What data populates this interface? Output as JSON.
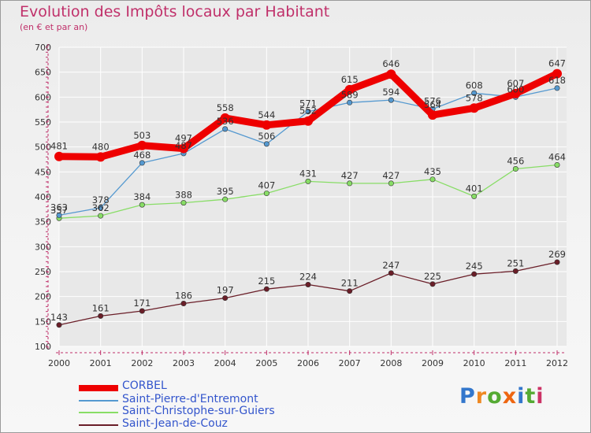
{
  "title": "Evolution des Impôts locaux par Habitant",
  "subtitle": "(en € et par an)",
  "logo_text": "Proxiti",
  "colors": {
    "background": "#f2f2f2",
    "title": "#c0306a",
    "axis": "#c0306a",
    "grid": "#ffffff",
    "legend_text": "#3355cc"
  },
  "chart_data": {
    "type": "line",
    "title": "Evolution des Impôts locaux par Habitant",
    "subtitle": "(en € et par an)",
    "xlabel": "",
    "ylabel": "",
    "x": [
      2000,
      2001,
      2002,
      2003,
      2004,
      2005,
      2006,
      2007,
      2008,
      2009,
      2010,
      2011,
      2012
    ],
    "ylim": [
      100,
      700
    ],
    "yticks": [
      100,
      150,
      200,
      250,
      300,
      350,
      400,
      450,
      500,
      550,
      600,
      650,
      700
    ],
    "grid": true,
    "legend_position": "bottom-left",
    "series": [
      {
        "name": "CORBEL",
        "color": "#ee0000",
        "values": [
          481,
          480,
          503,
          497,
          558,
          544,
          552,
          615,
          646,
          564,
          578,
          607,
          647
        ]
      },
      {
        "name": "Saint-Pierre-d'Entremont",
        "color": "#5599d0",
        "values": [
          363,
          378,
          468,
          487,
          536,
          506,
          571,
          589,
          594,
          576,
          608,
          600,
          618
        ]
      },
      {
        "name": "Saint-Christophe-sur-Guiers",
        "color": "#88dd66",
        "values": [
          357,
          362,
          384,
          388,
          395,
          407,
          431,
          427,
          427,
          435,
          401,
          456,
          464
        ]
      },
      {
        "name": "Saint-Jean-de-Couz",
        "color": "#6a1e28",
        "values": [
          143,
          161,
          171,
          186,
          197,
          215,
          224,
          211,
          247,
          225,
          245,
          251,
          269
        ]
      }
    ]
  }
}
